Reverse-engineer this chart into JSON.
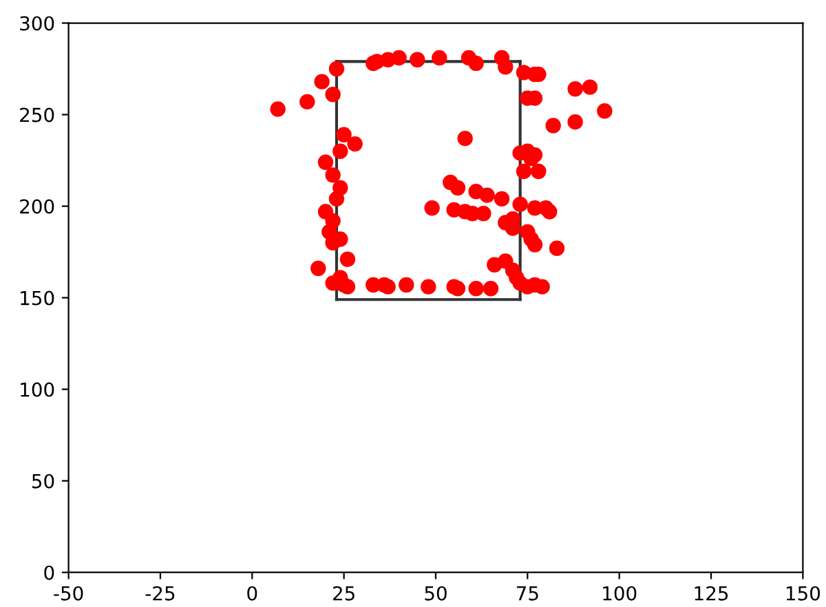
{
  "chart_data": {
    "type": "scatter",
    "xlim": [
      -50,
      150
    ],
    "ylim": [
      0,
      300
    ],
    "xticks": [
      -50,
      -25,
      0,
      25,
      50,
      75,
      100,
      125,
      150
    ],
    "yticks": [
      0,
      50,
      100,
      150,
      200,
      250,
      300
    ],
    "marker": "circle",
    "grid": false,
    "legend": false,
    "series": [
      {
        "color": "#ff0000",
        "x": [
          7,
          15,
          19,
          22,
          23,
          33,
          34,
          37,
          40,
          45,
          51,
          59,
          61,
          68,
          69,
          74,
          77,
          78,
          75,
          77,
          88,
          92,
          96,
          88,
          82,
          58,
          25,
          28,
          24,
          20,
          22,
          24,
          23,
          20,
          22,
          21,
          22,
          24,
          26,
          18,
          22,
          24,
          25,
          26,
          33,
          36,
          37,
          42,
          48,
          55,
          56,
          61,
          65,
          66,
          69,
          71,
          72,
          73,
          75,
          77,
          79,
          83,
          77,
          76,
          75,
          71,
          69,
          71,
          49,
          55,
          58,
          60,
          63,
          61,
          64,
          68,
          54,
          56,
          73,
          77,
          80,
          81,
          74,
          78,
          75,
          76,
          77,
          73
        ],
        "values": [
          253,
          257,
          268,
          261,
          275,
          278,
          279,
          280,
          281,
          280,
          281,
          281,
          278,
          281,
          276,
          273,
          272,
          272,
          259,
          259,
          264,
          265,
          252,
          246,
          244,
          237,
          239,
          234,
          230,
          224,
          217,
          210,
          204,
          197,
          192,
          186,
          180,
          182,
          171,
          166,
          158,
          161,
          157,
          156,
          157,
          157,
          156,
          157,
          156,
          156,
          155,
          155,
          155,
          168,
          170,
          165,
          161,
          158,
          156,
          157,
          156,
          177,
          179,
          182,
          186,
          193,
          191,
          188,
          199,
          198,
          197,
          196,
          196,
          208,
          206,
          204,
          213,
          210,
          201,
          199,
          199,
          197,
          219,
          219,
          230,
          226,
          228,
          229
        ]
      },
      {
        "type": "line",
        "marker": "none",
        "color": "#333333",
        "x": [
          23,
          73
        ],
        "values": [
          279,
          279
        ]
      },
      {
        "type": "line",
        "marker": "none",
        "color": "#333333",
        "x": [
          73,
          73
        ],
        "values": [
          279,
          149
        ]
      },
      {
        "type": "line",
        "marker": "none",
        "color": "#333333",
        "x": [
          23,
          73
        ],
        "values": [
          149,
          149
        ]
      },
      {
        "type": "line",
        "marker": "none",
        "color": "#333333",
        "x": [
          23,
          23
        ],
        "values": [
          149,
          279
        ]
      }
    ]
  }
}
